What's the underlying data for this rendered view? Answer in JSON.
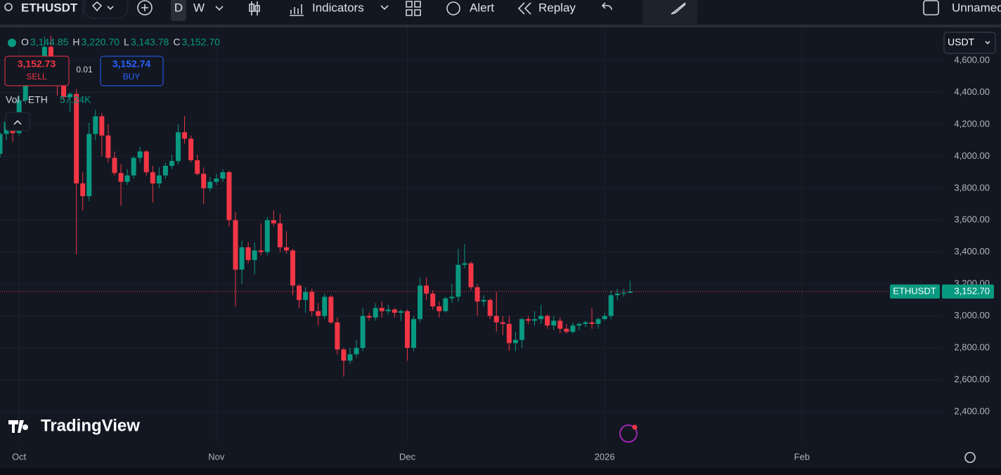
{
  "toolbar": {
    "symbol": "ETHUSDT",
    "intervals": [
      "D",
      "W"
    ],
    "indicators": "Indicators",
    "alert": "Alert",
    "replay": "Replay",
    "layout_name": "Unnamed"
  },
  "legend": {
    "ohlc": [
      {
        "label": "O",
        "value": "3,144.85"
      },
      {
        "label": "H",
        "value": "3,220.70"
      },
      {
        "label": "L",
        "value": "3,143.78"
      },
      {
        "label": "C",
        "value": "3,152.70"
      }
    ],
    "sell_price": "3,152.73",
    "sell": "SELL",
    "quantity": "0.01",
    "buy_price": "3,152.74",
    "buy": "BUY",
    "volume_label": "Vol · ETH",
    "volume": "57.24K"
  },
  "currency": "USDT",
  "watermark": "TradingView",
  "chart_data": {
    "type": "candlestick",
    "grid": true,
    "series": [
      {
        "name": "ETHUSDT",
        "up_color": "#089981",
        "down_color": "#f23645",
        "open": [
          4015,
          4140,
          4215,
          4145,
          4350,
          4480,
          4515,
          4490,
          4685,
          4525,
          4440,
          4370,
          4390,
          3830,
          3750,
          4140,
          4250,
          4130,
          3990,
          3895,
          3840,
          3880,
          3990,
          4030,
          3900,
          3830,
          3880,
          3940,
          3970,
          4150,
          4110,
          3975,
          3890,
          3800,
          3840,
          3860,
          3900,
          3600,
          3290,
          3430,
          3350,
          3410,
          3400,
          3600,
          3580,
          3430,
          3410,
          3190,
          3100,
          3150,
          3030,
          3000,
          3120,
          2960,
          2790,
          2720,
          2760,
          2800,
          3000,
          2990,
          3050,
          3030,
          3040,
          3020,
          3030,
          2800,
          2980,
          3190,
          3140,
          3060,
          3030,
          3110,
          3120,
          3320,
          3330,
          3180,
          3090,
          3100,
          3000,
          2960,
          2950,
          2830,
          2850,
          2980,
          2970,
          2980,
          3000,
          2940,
          2970,
          2920,
          2900,
          2940,
          2950,
          2960,
          2950,
          2980,
          3000,
          3130,
          3140,
          3144.85
        ],
        "high": [
          4150,
          4240,
          4235,
          4380,
          4490,
          4540,
          4595,
          4750,
          4755,
          4560,
          4460,
          4400,
          4420,
          3900,
          4210,
          4290,
          4270,
          4200,
          4030,
          3950,
          3920,
          4000,
          4060,
          4040,
          3940,
          3930,
          3960,
          4010,
          4200,
          4250,
          4130,
          4010,
          3930,
          3870,
          3890,
          3920,
          3910,
          3650,
          3470,
          3460,
          3460,
          3580,
          3620,
          3660,
          3640,
          3530,
          3420,
          3200,
          3180,
          3170,
          3080,
          3140,
          3130,
          2990,
          2800,
          2800,
          2850,
          3050,
          3020,
          3080,
          3090,
          3070,
          3050,
          3040,
          3040,
          3000,
          3240,
          3240,
          3160,
          3090,
          3120,
          3200,
          3420,
          3450,
          3340,
          3200,
          3130,
          3110,
          3150,
          3000,
          3000,
          2900,
          2990,
          3000,
          3030,
          3070,
          3010,
          3000,
          2990,
          2950,
          2960,
          2960,
          2970,
          3050,
          2990,
          3020,
          3160,
          3170,
          3170,
          3220.7
        ],
        "low": [
          3990,
          4100,
          4090,
          4130,
          4330,
          4440,
          4470,
          4480,
          4490,
          4380,
          4350,
          4280,
          3385,
          3660,
          3720,
          4100,
          4000,
          3960,
          3880,
          3690,
          3820,
          3860,
          3960,
          3880,
          3710,
          3800,
          3860,
          3920,
          3950,
          4080,
          3960,
          3880,
          3700,
          3780,
          3820,
          3840,
          3560,
          3060,
          3200,
          3330,
          3260,
          3380,
          3380,
          3560,
          3400,
          3390,
          3130,
          3050,
          3020,
          3000,
          2940,
          2980,
          2950,
          2760,
          2620,
          2700,
          2740,
          2780,
          2970,
          2970,
          2990,
          3010,
          2990,
          2970,
          2720,
          2780,
          2960,
          3100,
          3040,
          2990,
          3020,
          3080,
          3090,
          3300,
          3160,
          3000,
          3060,
          2980,
          2900,
          2880,
          2780,
          2780,
          2800,
          2950,
          2940,
          2950,
          2920,
          2910,
          2890,
          2890,
          2890,
          2910,
          2930,
          2920,
          2920,
          2970,
          2980,
          3100,
          3120,
          3143.78
        ],
        "close": [
          4140,
          4215,
          4145,
          4350,
          4480,
          4515,
          4490,
          4685,
          4525,
          4440,
          4370,
          4390,
          3830,
          3750,
          4140,
          4250,
          4130,
          3990,
          3895,
          3840,
          3880,
          3990,
          4030,
          3900,
          3830,
          3880,
          3940,
          3970,
          4150,
          4110,
          3975,
          3890,
          3800,
          3840,
          3860,
          3900,
          3600,
          3290,
          3430,
          3350,
          3410,
          3400,
          3600,
          3580,
          3430,
          3410,
          3190,
          3100,
          3150,
          3030,
          3000,
          3120,
          2960,
          2790,
          2720,
          2760,
          2800,
          3000,
          2990,
          3050,
          3030,
          3040,
          3020,
          3030,
          2800,
          2980,
          3190,
          3140,
          3060,
          3030,
          3110,
          3120,
          3320,
          3330,
          3180,
          3090,
          3100,
          3000,
          2960,
          2950,
          2830,
          2850,
          2980,
          2970,
          2980,
          3000,
          2940,
          2970,
          2920,
          2900,
          2940,
          2950,
          2960,
          2950,
          2980,
          3000,
          3130,
          3140,
          3145,
          3152.7
        ]
      }
    ],
    "last_price": {
      "value": 3152.7,
      "label": "3,152.70"
    },
    "ylim": [
      2206.4,
      4802.4
    ],
    "yticks": [
      {
        "value": 2400,
        "label": "2,400.00"
      },
      {
        "value": 2600,
        "label": "2,600.00"
      },
      {
        "value": 2800,
        "label": "2,800.00"
      },
      {
        "value": 3000,
        "label": "3,000.00"
      },
      {
        "value": 3200,
        "label": "3,200.00"
      },
      {
        "value": 3400,
        "label": "3,400.00"
      },
      {
        "value": 3600,
        "label": "3,600.00"
      },
      {
        "value": 3800,
        "label": "3,800.00"
      },
      {
        "value": 4000,
        "label": "4,000.00"
      },
      {
        "value": 4200,
        "label": "4,200.00"
      },
      {
        "value": 4400,
        "label": "4,400.00"
      },
      {
        "value": 4600,
        "label": "4,600.00"
      }
    ],
    "xlim": [
      0,
      148
    ],
    "xticks": [
      {
        "value": 3,
        "label": "Oct"
      },
      {
        "value": 34,
        "label": "Nov"
      },
      {
        "value": 64,
        "label": "Dec"
      },
      {
        "value": 95,
        "label": "2026"
      },
      {
        "value": 126,
        "label": "Feb"
      }
    ]
  }
}
